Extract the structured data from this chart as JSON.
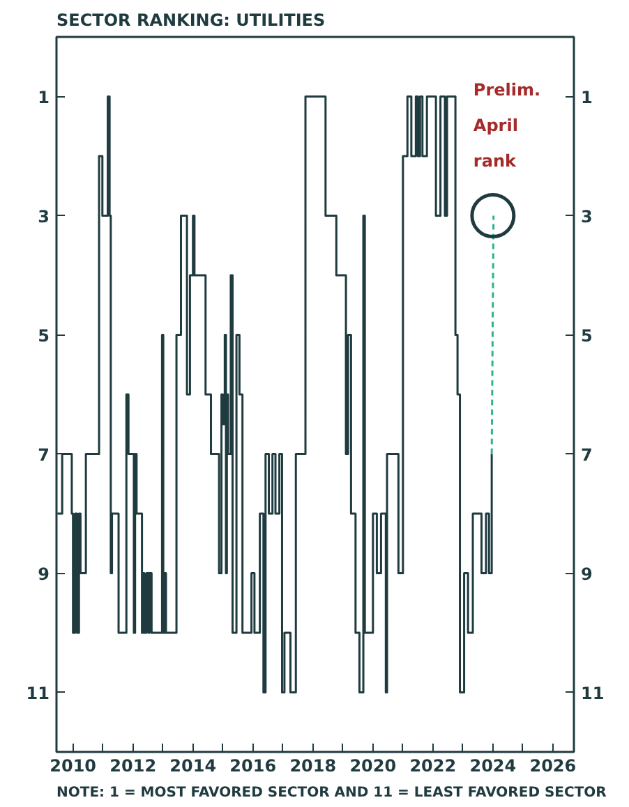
{
  "chart_data": {
    "type": "step",
    "title": "SECTOR RANKING: UTILITIES",
    "annotations": [
      {
        "text": "Prelim. April rank",
        "x": 2024.0,
        "y": 3
      },
      "NOTE: 1 = MOST FAVORED SECTOR AND 11 = LEAST FAVORED SECTOR"
    ],
    "xlim": [
      2009.45,
      2026.7
    ],
    "ylim": [
      12,
      0
    ],
    "y2lim": [
      12,
      0
    ],
    "xticks": [
      {
        "value": 2010,
        "label": "2010"
      },
      {
        "value": 2011,
        "label": null
      },
      {
        "value": 2012,
        "label": "2012"
      },
      {
        "value": 2013,
        "label": null
      },
      {
        "value": 2014,
        "label": "2014"
      },
      {
        "value": 2015,
        "label": null
      },
      {
        "value": 2016,
        "label": "2016"
      },
      {
        "value": 2017,
        "label": null
      },
      {
        "value": 2018,
        "label": "2018"
      },
      {
        "value": 2019,
        "label": null
      },
      {
        "value": 2020,
        "label": "2020"
      },
      {
        "value": 2021,
        "label": null
      },
      {
        "value": 2022,
        "label": "2022"
      },
      {
        "value": 2023,
        "label": null
      },
      {
        "value": 2024,
        "label": "2024"
      },
      {
        "value": 2025,
        "label": null
      },
      {
        "value": 2026,
        "label": "2026"
      }
    ],
    "yticks": [
      1,
      3,
      5,
      7,
      9,
      11
    ],
    "y2ticks": [
      1,
      3,
      5,
      7,
      9,
      11
    ],
    "grid": false,
    "series": [
      {
        "color": "#1f3b3f",
        "x": [
          2009.48,
          2009.64,
          2009.9,
          2009.96,
          2010.0,
          2010.07,
          2010.14,
          2010.2,
          2010.25,
          2010.43,
          2010.77,
          2010.87,
          2010.98,
          2011.05,
          2011.16,
          2011.22,
          2011.26,
          2011.3,
          2011.52,
          2011.62,
          2011.78,
          2011.85,
          2011.98,
          2012.03,
          2012.07,
          2012.12,
          2012.3,
          2012.33,
          2012.38,
          2012.45,
          2012.52,
          2012.55,
          2012.62,
          2012.85,
          2012.97,
          2013.01,
          2013.05,
          2013.1,
          2013.4,
          2013.45,
          2013.6,
          2013.8,
          2013.9,
          2014.0,
          2014.05,
          2014.2,
          2014.42,
          2014.6,
          2014.87,
          2014.95,
          2015.0,
          2015.06,
          2015.1,
          2015.13,
          2015.17,
          2015.26,
          2015.32,
          2015.45,
          2015.55,
          2015.65,
          2015.85,
          2015.95,
          2016.05,
          2016.23,
          2016.35,
          2016.42,
          2016.53,
          2016.65,
          2016.75,
          2016.88,
          2016.97,
          2017.05,
          2017.25,
          2017.43,
          2017.6,
          2017.75,
          2018.36,
          2018.42,
          2018.7,
          2018.78,
          2018.9,
          2019.1,
          2019.17,
          2019.27,
          2019.42,
          2019.55,
          2019.68,
          2019.73,
          2020.0,
          2020.13,
          2020.27,
          2020.43,
          2020.47,
          2020.72,
          2020.85,
          2021.0,
          2021.15,
          2021.28,
          2021.43,
          2021.5,
          2021.57,
          2021.65,
          2021.8,
          2022.03,
          2022.1,
          2022.25,
          2022.4,
          2022.47,
          2022.75,
          2022.82,
          2022.9,
          2023.04,
          2023.17,
          2023.33,
          2023.55,
          2023.62,
          2023.77,
          2023.87,
          2023.96
        ],
        "values": [
          8,
          7,
          7,
          8,
          10,
          8,
          10,
          8,
          9,
          7,
          7,
          2,
          3,
          3,
          1,
          3,
          9,
          8,
          10,
          10,
          6,
          7,
          7,
          10,
          7,
          8,
          10,
          9,
          10,
          9,
          10,
          9,
          10,
          10,
          5,
          10,
          9,
          10,
          10,
          5,
          3,
          6,
          4,
          3,
          4,
          4,
          6,
          7,
          9,
          6,
          6.5,
          5,
          9,
          6,
          7,
          4,
          10,
          5,
          6,
          10,
          10,
          9,
          10,
          8,
          11,
          7,
          8,
          7,
          8,
          7,
          11,
          10,
          11,
          7,
          7,
          1,
          1,
          3,
          3,
          4,
          4,
          7,
          5,
          8,
          10,
          11,
          3,
          10,
          8,
          9,
          8,
          11,
          7,
          7,
          9,
          2,
          1,
          2,
          1,
          2,
          1,
          2,
          1,
          1,
          3,
          1,
          3,
          1,
          5,
          6,
          11,
          9,
          10,
          8,
          8,
          9,
          8,
          9,
          7
        ]
      },
      {
        "color": "#2bb58a",
        "type": "line",
        "line_style": "dashed",
        "x": [
          2023.96,
          2024.02
        ],
        "values": [
          7,
          3
        ]
      }
    ]
  }
}
